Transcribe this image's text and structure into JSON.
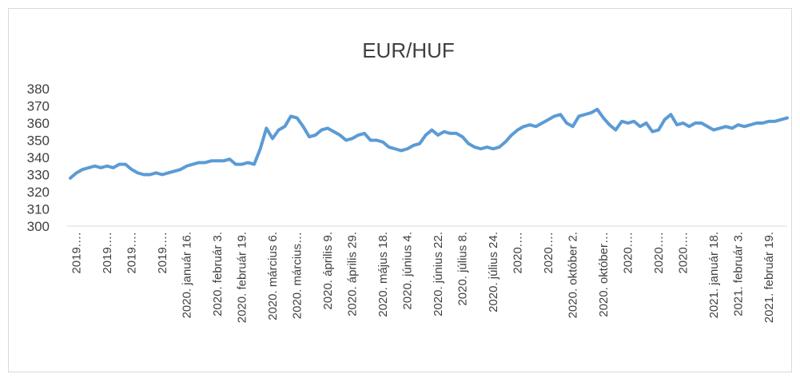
{
  "chart_data": {
    "type": "line",
    "title": "EUR/HUF",
    "categories": [
      null,
      "2019.…",
      null,
      null,
      null,
      null,
      "2019.…",
      null,
      null,
      null,
      "2019.…",
      null,
      null,
      null,
      null,
      "2019.…",
      null,
      null,
      null,
      "2020. január 16.",
      null,
      null,
      null,
      null,
      "2020. február 3.",
      null,
      null,
      null,
      "2020. február 19.",
      null,
      null,
      null,
      null,
      "2020. március 6.",
      null,
      null,
      null,
      "2020. március…",
      null,
      null,
      null,
      null,
      "2020. április 9.",
      null,
      null,
      null,
      "2020. április 29.",
      null,
      null,
      null,
      null,
      "2020. május 18.",
      null,
      null,
      null,
      "2020. június 4.",
      null,
      null,
      null,
      null,
      "2020. június 22.",
      null,
      null,
      null,
      "2020. július 8.",
      null,
      null,
      null,
      null,
      "2020. július 24.",
      null,
      null,
      null,
      "2020.…",
      null,
      null,
      null,
      null,
      "2020.…",
      null,
      null,
      null,
      "2020. október 2.",
      null,
      null,
      null,
      null,
      "2020. október…",
      null,
      null,
      null,
      "2020.…",
      null,
      null,
      null,
      null,
      "2020.…",
      null,
      null,
      null,
      "2020.…",
      null,
      null,
      null,
      null,
      "2021. január 18.",
      null,
      null,
      null,
      "2021. február 3.",
      null,
      null,
      null,
      null,
      "2021. február 19.",
      null,
      null,
      null
    ],
    "series": [
      {
        "name": "EUR/HUF",
        "color": "#5b9bd5",
        "values": [
          328,
          331,
          333,
          334,
          335,
          334,
          335,
          334,
          336,
          336,
          333,
          331,
          330,
          330,
          331,
          330,
          331,
          332,
          333,
          335,
          336,
          337,
          337,
          338,
          338,
          338,
          339,
          336,
          336,
          337,
          336,
          345,
          357,
          351,
          356,
          358,
          364,
          363,
          358,
          352,
          353,
          356,
          357,
          355,
          353,
          350,
          351,
          353,
          354,
          350,
          350,
          349,
          346,
          345,
          344,
          345,
          347,
          348,
          353,
          356,
          353,
          355,
          354,
          354,
          352,
          348,
          346,
          345,
          346,
          345,
          346,
          349,
          353,
          356,
          358,
          359,
          358,
          360,
          362,
          364,
          365,
          360,
          358,
          364,
          365,
          366,
          368,
          363,
          359,
          356,
          361,
          360,
          361,
          358,
          360,
          355,
          356,
          362,
          365,
          359,
          360,
          358,
          360,
          360,
          358,
          356,
          357,
          358,
          357,
          359,
          358,
          359,
          360,
          360,
          361,
          361,
          362,
          363
        ]
      }
    ],
    "ylim": [
      300,
      380
    ],
    "yticks": [
      300,
      310,
      320,
      330,
      340,
      350,
      360,
      370,
      380
    ],
    "grid": false
  }
}
